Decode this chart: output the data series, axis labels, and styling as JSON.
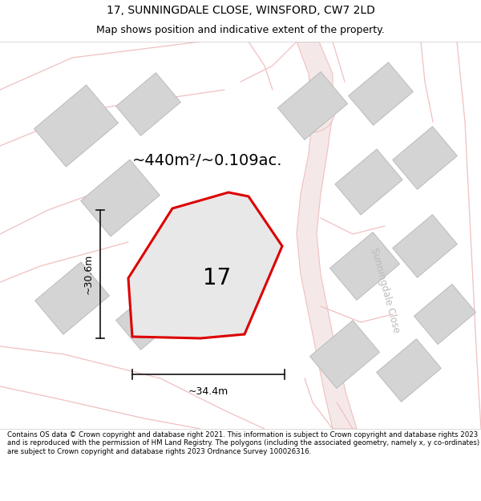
{
  "title_line1": "17, SUNNINGDALE CLOSE, WINSFORD, CW7 2LD",
  "title_line2": "Map shows position and indicative extent of the property.",
  "area_label": "~440m²/~0.109ac.",
  "plot_number": "17",
  "dim_height": "~30.6m",
  "dim_width": "~34.4m",
  "street_label": "Sunningdale Close",
  "footer_text": "Contains OS data © Crown copyright and database right 2021. This information is subject to Crown copyright and database rights 2023 and is reproduced with the permission of HM Land Registry. The polygons (including the associated geometry, namely x, y co-ordinates) are subject to Crown copyright and database rights 2023 Ordnance Survey 100026316.",
  "bg_color": "#ffffff",
  "map_bg": "#f7f0f0",
  "plot_fill": "#e8e8e8",
  "plot_edge": "#dd0000",
  "neighbor_fill": "#d4d4d4",
  "neighbor_edge": "#bbbbbb",
  "road_fill": "#f5e8e8",
  "road_line": "#f0c0c0",
  "dim_color": "#111111",
  "street_text_color": "#bbbbbb",
  "title_fontsize": 10,
  "subtitle_fontsize": 9,
  "area_fontsize": 14,
  "number_fontsize": 20,
  "dim_fontsize": 9
}
